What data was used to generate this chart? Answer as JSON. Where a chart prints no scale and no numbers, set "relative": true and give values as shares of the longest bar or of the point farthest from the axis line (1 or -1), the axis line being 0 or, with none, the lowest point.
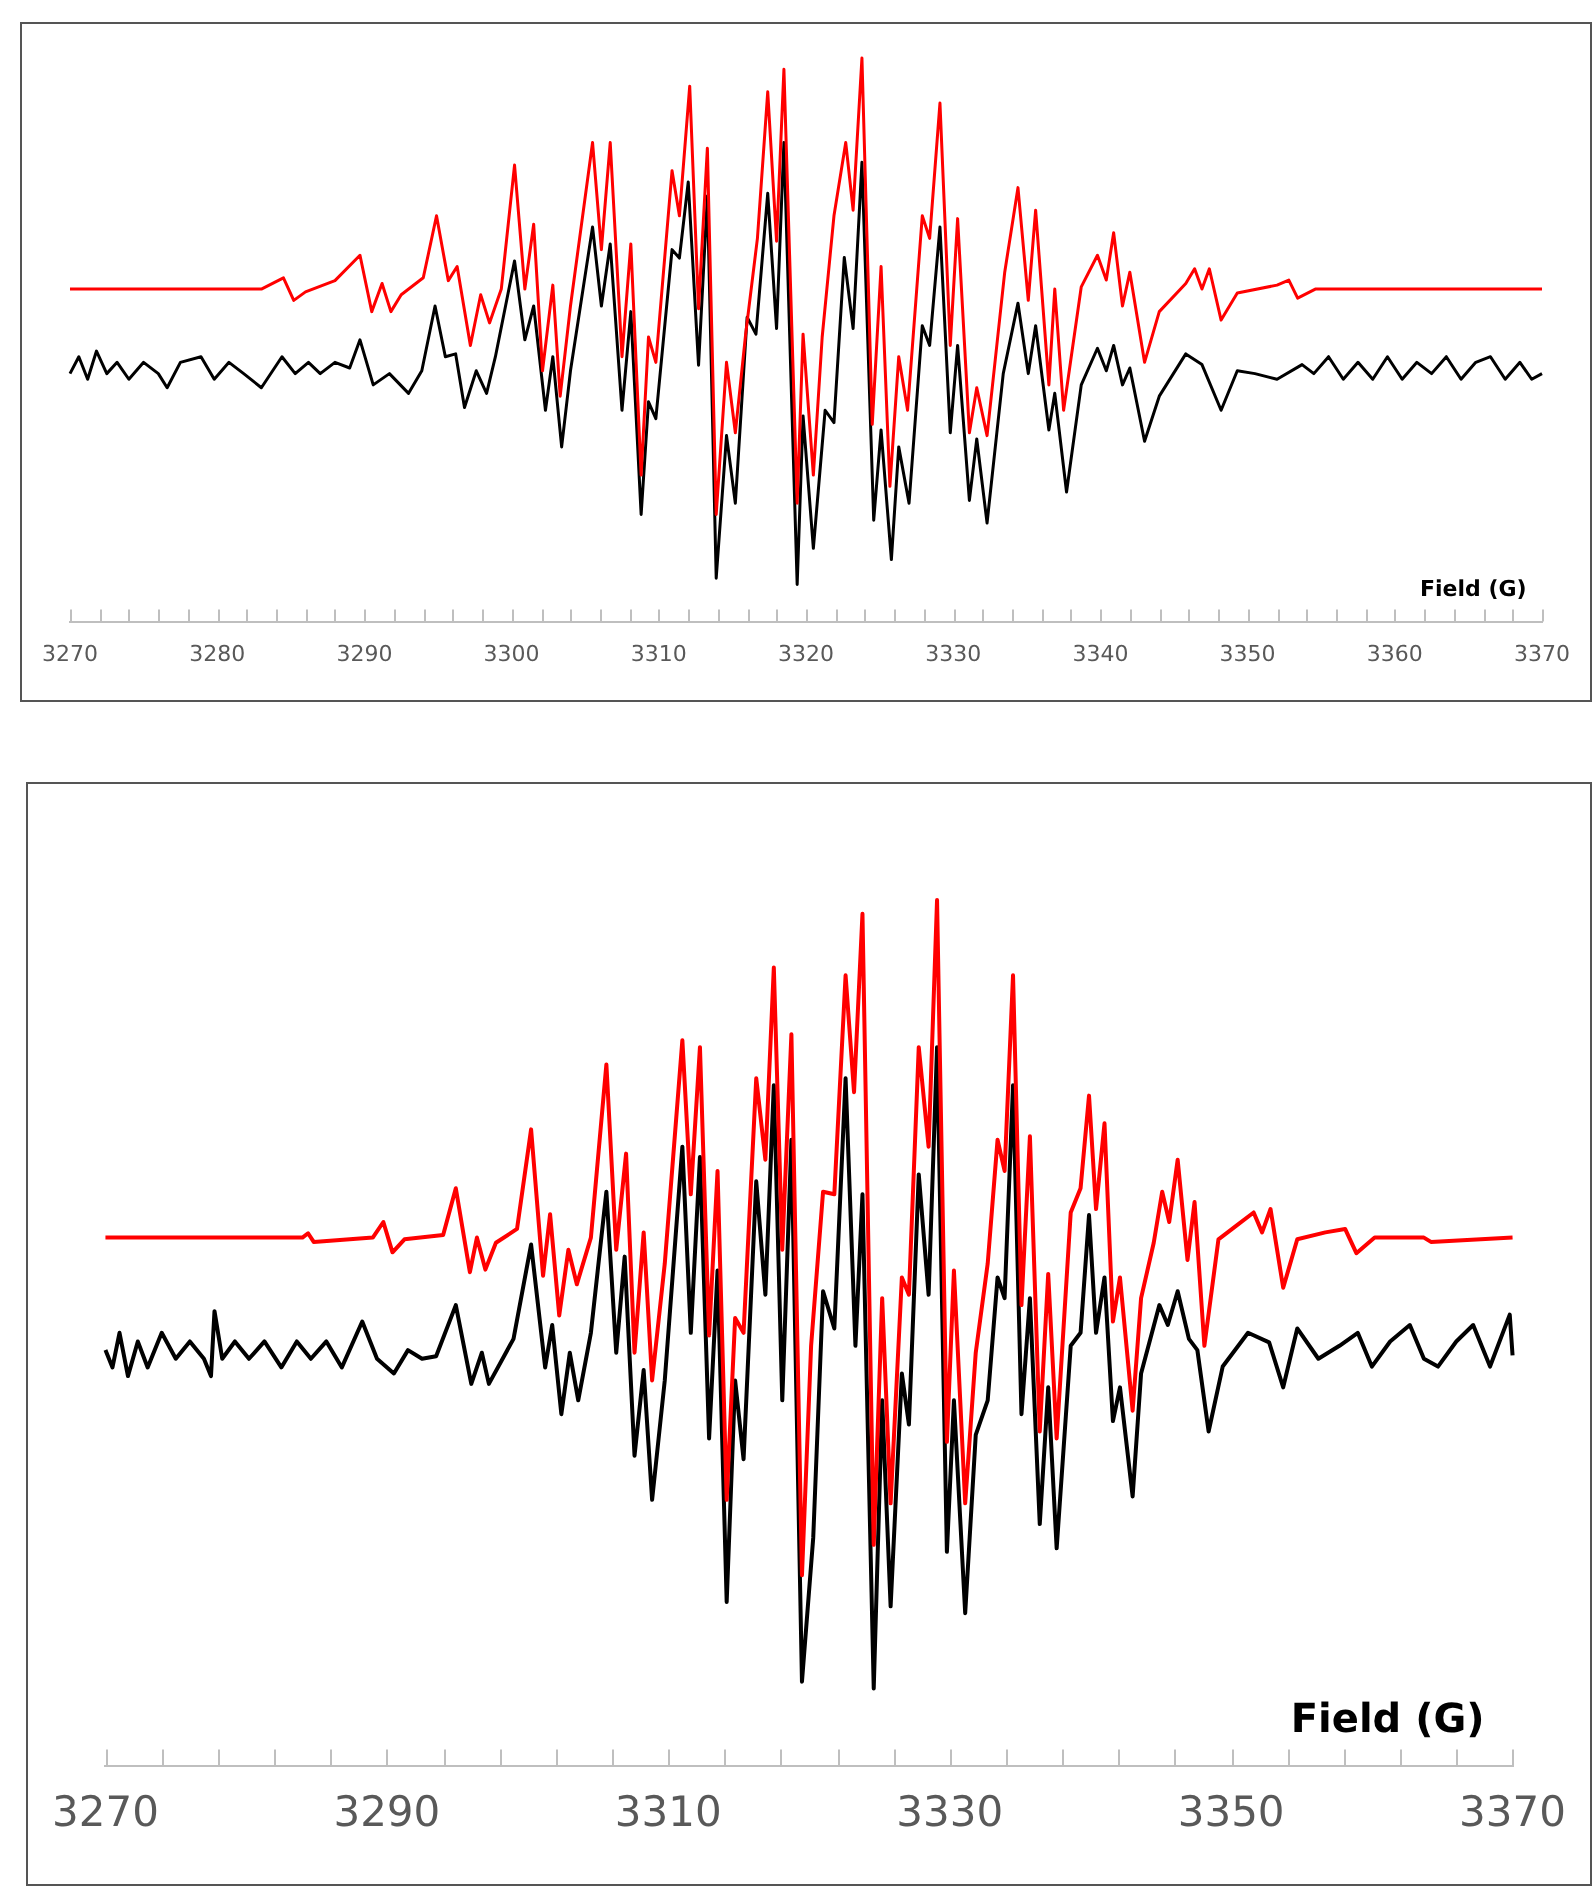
{
  "chart_data": [
    {
      "type": "line",
      "relative": true,
      "xlabel": "Field (G)",
      "xlim": [
        3270,
        3370
      ],
      "xticks": [
        3270,
        {
          "value": 3272,
          "label": null
        },
        {
          "value": 3274,
          "label": null
        },
        {
          "value": 3276,
          "label": null
        },
        {
          "value": 3278,
          "label": null
        },
        3280,
        {
          "value": 3282,
          "label": null
        },
        {
          "value": 3284,
          "label": null
        },
        {
          "value": 3286,
          "label": null
        },
        {
          "value": 3288,
          "label": null
        },
        3290,
        {
          "value": 3292,
          "label": null
        },
        {
          "value": 3294,
          "label": null
        },
        {
          "value": 3296,
          "label": null
        },
        {
          "value": 3298,
          "label": null
        },
        3300,
        {
          "value": 3302,
          "label": null
        },
        {
          "value": 3304,
          "label": null
        },
        {
          "value": 3306,
          "label": null
        },
        {
          "value": 3308,
          "label": null
        },
        3310,
        {
          "value": 3312,
          "label": null
        },
        {
          "value": 3314,
          "label": null
        },
        {
          "value": 3316,
          "label": null
        },
        {
          "value": 3318,
          "label": null
        },
        3320,
        {
          "value": 3322,
          "label": null
        },
        {
          "value": 3324,
          "label": null
        },
        {
          "value": 3326,
          "label": null
        },
        {
          "value": 3328,
          "label": null
        },
        3330,
        {
          "value": 3332,
          "label": null
        },
        {
          "value": 3334,
          "label": null
        },
        {
          "value": 3336,
          "label": null
        },
        {
          "value": 3338,
          "label": null
        },
        3340,
        {
          "value": 3342,
          "label": null
        },
        {
          "value": 3344,
          "label": null
        },
        {
          "value": 3346,
          "label": null
        },
        {
          "value": 3348,
          "label": null
        },
        3350,
        {
          "value": 3352,
          "label": null
        },
        {
          "value": 3354,
          "label": null
        },
        {
          "value": 3356,
          "label": null
        },
        {
          "value": 3358,
          "label": null
        },
        3360,
        {
          "value": 3362,
          "label": null
        },
        {
          "value": 3364,
          "label": null
        },
        {
          "value": 3366,
          "label": null
        },
        {
          "value": 3368,
          "label": null
        },
        3370
      ],
      "series": [
        {
          "color": "#ff0000",
          "x": [
            3270,
            3279,
            3283,
            3284.5,
            3285.2,
            3286,
            3288,
            3289.7,
            3290.5,
            3291.2,
            3291.8,
            3292.5,
            3294,
            3294.9,
            3295.7,
            3296.3,
            3297.2,
            3297.9,
            3298.5,
            3299.3,
            3300.2,
            3300.9,
            3301.5,
            3302.1,
            3302.8,
            3303.3,
            3304,
            3305.5,
            3306.1,
            3306.7,
            3307.5,
            3308.1,
            3308.8,
            3309.3,
            3309.8,
            3310.9,
            3311.4,
            3312.1,
            3312.7,
            3313.3,
            3313.9,
            3314.6,
            3315.2,
            3315.9,
            3316.7,
            3317.4,
            3318,
            3318.5,
            3319.4,
            3319.8,
            3320.5,
            3321.1,
            3321.9,
            3322.7,
            3323.2,
            3323.8,
            3324.5,
            3325.1,
            3325.7,
            3326.3,
            3326.9,
            3327.9,
            3328.4,
            3329.1,
            3329.8,
            3330.3,
            3331.1,
            3331.6,
            3332.3,
            3333.5,
            3334.4,
            3335.1,
            3335.6,
            3336.5,
            3336.9,
            3337.5,
            3338.7,
            3339.8,
            3340.4,
            3340.9,
            3341.5,
            3342,
            3343,
            3344,
            3345.8,
            3346.4,
            3346.9,
            3347.4,
            3348.2,
            3349.3,
            3352,
            3352.8,
            3353.4,
            3354.6,
            3370
          ],
          "values": [
            0.59,
            0.59,
            0.59,
            0.61,
            0.57,
            0.585,
            0.605,
            0.65,
            0.55,
            0.6,
            0.55,
            0.58,
            0.61,
            0.72,
            0.605,
            0.63,
            0.49,
            0.58,
            0.53,
            0.59,
            0.81,
            0.59,
            0.705,
            0.445,
            0.597,
            0.4,
            0.56,
            0.85,
            0.66,
            0.85,
            0.47,
            0.67,
            0.26,
            0.505,
            0.46,
            0.8,
            0.72,
            0.95,
            0.555,
            0.84,
            0.19,
            0.46,
            0.335,
            0.51,
            0.68,
            0.94,
            0.675,
            0.98,
            0.21,
            0.51,
            0.26,
            0.505,
            0.72,
            0.85,
            0.73,
            1,
            0.35,
            0.63,
            0.24,
            0.47,
            0.375,
            0.72,
            0.68,
            0.92,
            0.49,
            0.715,
            0.335,
            0.415,
            0.33,
            0.62,
            0.77,
            0.57,
            0.73,
            0.42,
            0.59,
            0.375,
            0.594,
            0.65,
            0.606,
            0.69,
            0.56,
            0.62,
            0.46,
            0.55,
            0.6,
            0.626,
            0.59,
            0.626,
            0.535,
            0.583,
            0.597,
            0.606,
            0.574,
            0.59,
            0.59
          ]
        },
        {
          "color": "#000000",
          "x": [
            3270,
            3270.6,
            3271.2,
            3271.8,
            3272.5,
            3273.2,
            3274,
            3275,
            3276,
            3276.6,
            3277.5,
            3278.9,
            3279.8,
            3280.8,
            3281.8,
            3283,
            3284.4,
            3285.3,
            3286.2,
            3287,
            3288,
            3289,
            3289.7,
            3290.6,
            3291.7,
            3293,
            3293.9,
            3294.8,
            3295.5,
            3296.2,
            3296.8,
            3297.6,
            3298.3,
            3298.9,
            3300.2,
            3300.9,
            3301.5,
            3302.3,
            3302.8,
            3303.4,
            3304,
            3305.5,
            3306.1,
            3306.7,
            3307.5,
            3308.1,
            3308.8,
            3309.3,
            3309.8,
            3310.9,
            3311.4,
            3312,
            3312.7,
            3313.3,
            3313.9,
            3314.6,
            3315.2,
            3316,
            3316.6,
            3317.4,
            3318,
            3318.5,
            3319.4,
            3319.8,
            3320.5,
            3321.3,
            3321.9,
            3322.6,
            3323.2,
            3323.8,
            3324.6,
            3325.1,
            3325.8,
            3326.3,
            3327,
            3327.9,
            3328.4,
            3329.1,
            3329.8,
            3330.3,
            3331.1,
            3331.6,
            3332.3,
            3333.4,
            3334.4,
            3335.1,
            3335.6,
            3336.5,
            3336.9,
            3337.7,
            3338.7,
            3339.8,
            3340.4,
            3340.9,
            3341.5,
            3342,
            3343,
            3344,
            3345.8,
            3346.9,
            3348.2,
            3349.3,
            3350.5,
            3352,
            3353.7,
            3354.5,
            3355.5,
            3356.5,
            3357.5,
            3358.5,
            3359.5,
            3360.5,
            3361.5,
            3362.5,
            3363.5,
            3364.5,
            3365.5,
            3366.5,
            3367.5,
            3368.5,
            3369.3,
            3370
          ],
          "values": [
            0.44,
            0.47,
            0.43,
            0.48,
            0.44,
            0.46,
            0.43,
            0.46,
            0.44,
            0.415,
            0.46,
            0.47,
            0.43,
            0.46,
            0.44,
            0.415,
            0.47,
            0.44,
            0.46,
            0.44,
            0.46,
            0.45,
            0.5,
            0.42,
            0.44,
            0.405,
            0.445,
            0.56,
            0.47,
            0.475,
            0.38,
            0.445,
            0.405,
            0.47,
            0.64,
            0.5,
            0.56,
            0.375,
            0.47,
            0.31,
            0.445,
            0.7,
            0.56,
            0.67,
            0.375,
            0.55,
            0.19,
            0.39,
            0.36,
            0.66,
            0.645,
            0.78,
            0.455,
            0.755,
            0.077,
            0.33,
            0.21,
            0.54,
            0.51,
            0.76,
            0.52,
            0.85,
            0.066,
            0.365,
            0.13,
            0.375,
            0.353,
            0.646,
            0.52,
            0.815,
            0.18,
            0.34,
            0.11,
            0.31,
            0.21,
            0.525,
            0.49,
            0.7,
            0.335,
            0.49,
            0.215,
            0.324,
            0.175,
            0.44,
            0.565,
            0.44,
            0.525,
            0.34,
            0.405,
            0.23,
            0.42,
            0.485,
            0.445,
            0.49,
            0.42,
            0.45,
            0.32,
            0.4,
            0.475,
            0.456,
            0.375,
            0.445,
            0.44,
            0.43,
            0.456,
            0.44,
            0.47,
            0.43,
            0.46,
            0.43,
            0.47,
            0.43,
            0.46,
            0.44,
            0.47,
            0.43,
            0.46,
            0.47,
            0.43,
            0.46,
            0.43,
            0.44
          ]
        }
      ]
    },
    {
      "type": "line",
      "relative": true,
      "xlabel": "Field (G)",
      "xlim": [
        3270,
        3370
      ],
      "xticks": [
        3270,
        {
          "value": 3274,
          "label": null
        },
        {
          "value": 3278,
          "label": null
        },
        {
          "value": 3282,
          "label": null
        },
        {
          "value": 3286,
          "label": null
        },
        3290,
        {
          "value": 3294,
          "label": null
        },
        {
          "value": 3298,
          "label": null
        },
        {
          "value": 3302,
          "label": null
        },
        {
          "value": 3306,
          "label": null
        },
        3310,
        {
          "value": 3314,
          "label": null
        },
        {
          "value": 3318,
          "label": null
        },
        {
          "value": 3322,
          "label": null
        },
        {
          "value": 3326,
          "label": null
        },
        3330,
        {
          "value": 3334,
          "label": null
        },
        {
          "value": 3338,
          "label": null
        },
        {
          "value": 3342,
          "label": null
        },
        {
          "value": 3346,
          "label": null
        },
        3350,
        {
          "value": 3354,
          "label": null
        },
        {
          "value": 3358,
          "label": null
        },
        {
          "value": 3362,
          "label": null
        },
        {
          "value": 3366,
          "label": null
        },
        3370
      ],
      "series": [
        {
          "color": "#ff0000",
          "x": [
            3270,
            3284,
            3284.4,
            3284.8,
            3289,
            3289.75,
            3290.4,
            3291.25,
            3294,
            3294.9,
            3295.9,
            3296.4,
            3297,
            3297.75,
            3299.25,
            3300.25,
            3301.1,
            3301.6,
            3302.25,
            3302.9,
            3303.5,
            3304.5,
            3305.6,
            3306.3,
            3307,
            3307.6,
            3308.25,
            3308.85,
            3309.75,
            3311,
            3311.6,
            3312.25,
            3312.9,
            3313.5,
            3314.15,
            3314.75,
            3315.35,
            3316.25,
            3316.9,
            3317.5,
            3318.1,
            3318.75,
            3319.5,
            3320.15,
            3321,
            3321.8,
            3322.6,
            3323.2,
            3323.8,
            3324.6,
            3325.2,
            3325.8,
            3326.6,
            3327.1,
            3327.8,
            3328.5,
            3329.1,
            3329.8,
            3330.3,
            3331.1,
            3331.85,
            3332.7,
            3333.4,
            3333.9,
            3334.5,
            3335.1,
            3335.7,
            3336.4,
            3337,
            3337.6,
            3338.6,
            3339.3,
            3339.9,
            3340.4,
            3341,
            3341.6,
            3342.1,
            3343,
            3343.6,
            3344.5,
            3345.1,
            3345.6,
            3346.2,
            3346.9,
            3347.4,
            3348.1,
            3349.1,
            3350.4,
            3351.6,
            3352.2,
            3352.8,
            3353.7,
            3354.7,
            3356.7,
            3358.1,
            3358.9,
            3360.2,
            3363.7,
            3364.2,
            3370
          ],
          "values": [
            0.61,
            0.61,
            0.615,
            0.605,
            0.61,
            0.628,
            0.593,
            0.608,
            0.613,
            0.667,
            0.57,
            0.61,
            0.573,
            0.604,
            0.62,
            0.735,
            0.566,
            0.637,
            0.52,
            0.596,
            0.556,
            0.61,
            0.81,
            0.596,
            0.707,
            0.477,
            0.616,
            0.445,
            0.58,
            0.838,
            0.66,
            0.83,
            0.497,
            0.687,
            0.307,
            0.517,
            0.5,
            0.794,
            0.7,
            0.922,
            0.596,
            0.845,
            0.22,
            0.485,
            0.663,
            0.66,
            0.913,
            0.778,
            0.984,
            0.255,
            0.54,
            0.303,
            0.564,
            0.544,
            0.83,
            0.715,
            1,
            0.374,
            0.572,
            0.303,
            0.477,
            0.58,
            0.723,
            0.687,
            0.913,
            0.532,
            0.727,
            0.386,
            0.568,
            0.378,
            0.639,
            0.667,
            0.774,
            0.643,
            0.742,
            0.513,
            0.564,
            0.41,
            0.54,
            0.604,
            0.663,
            0.628,
            0.7,
            0.584,
            0.651,
            0.485,
            0.608,
            0.624,
            0.639,
            0.616,
            0.643,
            0.552,
            0.608,
            0.616,
            0.62,
            0.592,
            0.61,
            0.61,
            0.605,
            0.61
          ]
        },
        {
          "color": "#000000",
          "x": [
            3270,
            3270.5,
            3271,
            3271.6,
            3272.3,
            3273,
            3274,
            3275,
            3276,
            3277,
            3277.5,
            3277.75,
            3278.3,
            3279.2,
            3280.2,
            3281.3,
            3282.5,
            3283.6,
            3284.6,
            3285.7,
            3286.8,
            3288.25,
            3289.3,
            3290.5,
            3291.5,
            3292.5,
            3293.5,
            3294.9,
            3296,
            3296.75,
            3297.25,
            3299,
            3300.25,
            3301.25,
            3301.75,
            3302.4,
            3303,
            3303.6,
            3304.5,
            3305.6,
            3306.3,
            3306.9,
            3307.6,
            3308.25,
            3308.85,
            3309.75,
            3311,
            3311.6,
            3312.25,
            3312.9,
            3313.5,
            3314.15,
            3314.75,
            3315.35,
            3316.25,
            3316.9,
            3317.5,
            3318.1,
            3318.75,
            3319.5,
            3320.3,
            3321,
            3321.8,
            3322.6,
            3323.3,
            3323.8,
            3324.6,
            3325.2,
            3325.8,
            3326.6,
            3327.1,
            3327.8,
            3328.5,
            3329.1,
            3329.8,
            3330.3,
            3331.1,
            3331.85,
            3332.7,
            3333.4,
            3333.9,
            3334.5,
            3335.1,
            3335.7,
            3336.4,
            3337,
            3337.6,
            3338.6,
            3339.3,
            3339.9,
            3340.4,
            3341,
            3341.6,
            3342.1,
            3343,
            3343.6,
            3344.9,
            3345.5,
            3346.2,
            3347,
            3347.6,
            3348.4,
            3349.4,
            3351.2,
            3352.7,
            3353.7,
            3354.7,
            3356.2,
            3357.7,
            3359,
            3360,
            3361.3,
            3362.7,
            3363.7,
            3364.7,
            3366,
            3367.2,
            3368.4,
            3369.8,
            3370
          ],
          "values": [
            0.48,
            0.46,
            0.5,
            0.45,
            0.49,
            0.46,
            0.5,
            0.47,
            0.49,
            0.47,
            0.45,
            0.525,
            0.47,
            0.49,
            0.47,
            0.49,
            0.46,
            0.49,
            0.47,
            0.49,
            0.46,
            0.513,
            0.47,
            0.453,
            0.48,
            0.47,
            0.473,
            0.532,
            0.441,
            0.477,
            0.441,
            0.493,
            0.602,
            0.46,
            0.509,
            0.406,
            0.477,
            0.422,
            0.5,
            0.663,
            0.477,
            0.588,
            0.358,
            0.457,
            0.307,
            0.445,
            0.715,
            0.5,
            0.703,
            0.378,
            0.572,
            0.189,
            0.445,
            0.354,
            0.675,
            0.544,
            0.786,
            0.422,
            0.723,
            0.097,
            0.263,
            0.548,
            0.505,
            0.794,
            0.485,
            0.66,
            0.089,
            0.422,
            0.184,
            0.453,
            0.394,
            0.683,
            0.544,
            0.83,
            0.247,
            0.422,
            0.176,
            0.382,
            0.422,
            0.564,
            0.54,
            0.786,
            0.406,
            0.54,
            0.279,
            0.437,
            0.251,
            0.485,
            0.5,
            0.636,
            0.5,
            0.564,
            0.398,
            0.437,
            0.311,
            0.453,
            0.532,
            0.509,
            0.548,
            0.493,
            0.48,
            0.386,
            0.461,
            0.5,
            0.489,
            0.437,
            0.505,
            0.47,
            0.485,
            0.5,
            0.461,
            0.49,
            0.509,
            0.47,
            0.461,
            0.49,
            0.509,
            0.461,
            0.521,
            0.474
          ]
        }
      ]
    }
  ]
}
